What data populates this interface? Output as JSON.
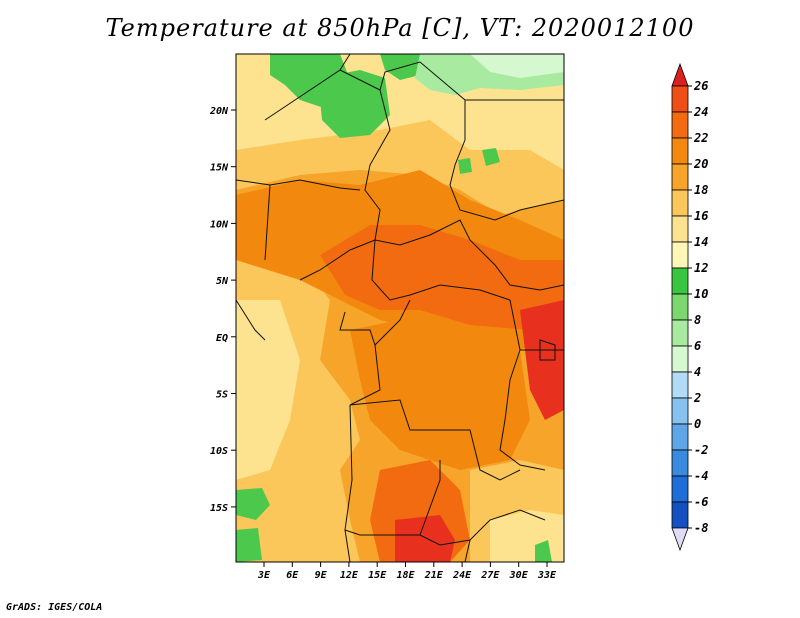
{
  "title": "Temperature at 850hPa [C], VT: 2020012100",
  "credit": "GrADS: IGES/COLA",
  "map": {
    "lat_labels": [
      "20N",
      "15N",
      "10N",
      "5N",
      "EQ",
      "5S",
      "10S",
      "15S"
    ],
    "lon_labels": [
      "3E",
      "6E",
      "9E",
      "12E",
      "15E",
      "18E",
      "21E",
      "24E",
      "27E",
      "30E",
      "33E"
    ],
    "lon_range": [
      0,
      35
    ],
    "lat_range": [
      -20,
      24
    ]
  },
  "colorbar": {
    "labels": [
      "26",
      "24",
      "22",
      "20",
      "18",
      "16",
      "14",
      "12",
      "10",
      "8",
      "6",
      "4",
      "2",
      "0",
      "-2",
      "-4",
      "-6",
      "-8"
    ],
    "colors": [
      "#e8301f",
      "#ef4f17",
      "#f26b10",
      "#f3880f",
      "#f6a42a",
      "#fbc65a",
      "#fde38f",
      "#fef7b8",
      "#38c640",
      "#7ad86c",
      "#a8eaa0",
      "#d5f8d0",
      "#b2dcf6",
      "#86c2ef",
      "#5ea6e8",
      "#3a8be0",
      "#1f6ed8",
      "#1450c2",
      "#0d34a3",
      "#071a78"
    ],
    "top_color": "#dc2020",
    "bottom_color": "#e0dcf8"
  },
  "palette": {
    "water": "#b8f0c8",
    "low": "#4cc84c",
    "cool": "#fde38f",
    "mild": "#fbc65a",
    "warm": "#f6a42a",
    "hot": "#f3880f",
    "hotter": "#f26b10",
    "hottest": "#e8301f"
  }
}
